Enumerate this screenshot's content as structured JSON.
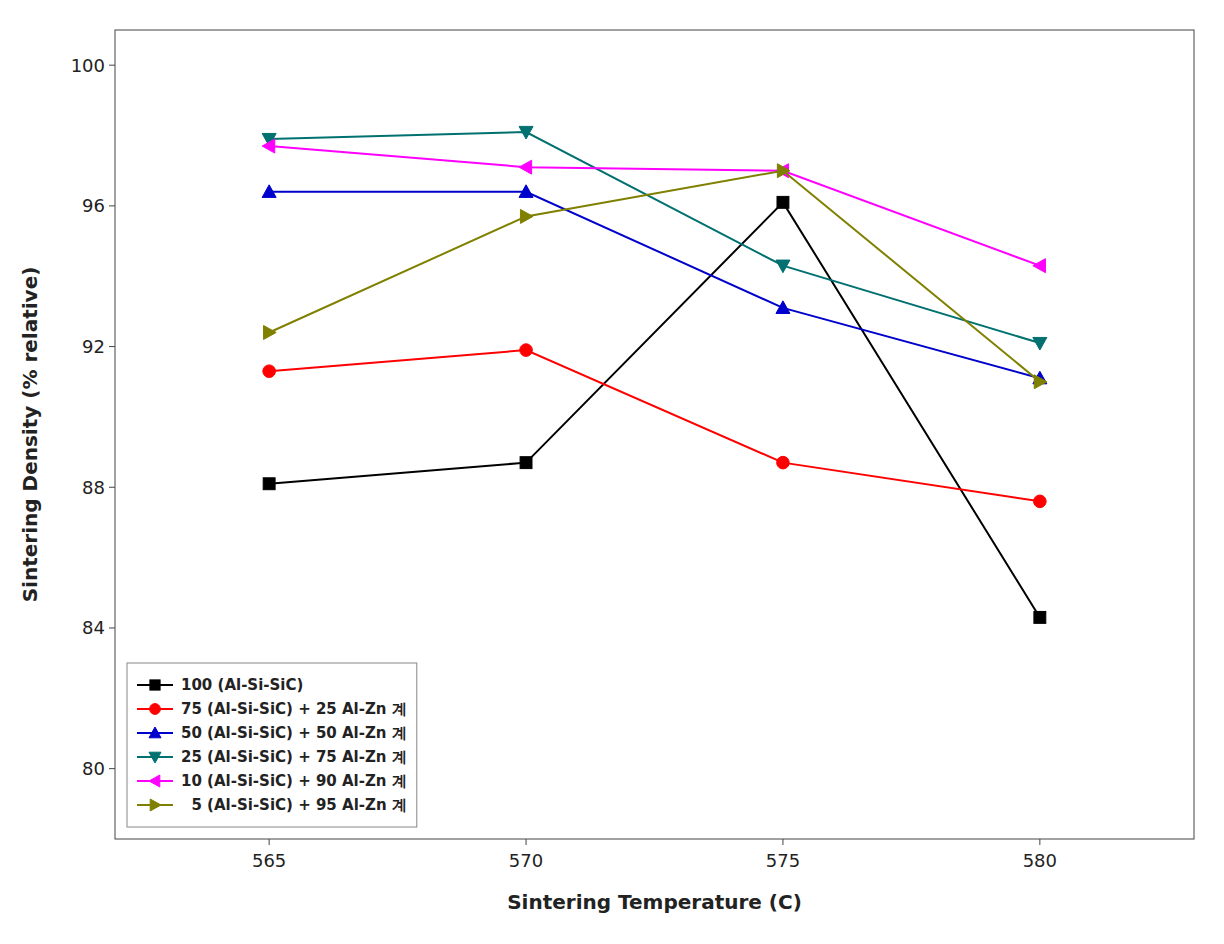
{
  "chart_data": {
    "type": "line",
    "x": [
      565,
      570,
      575,
      580
    ],
    "series": [
      {
        "name": "100 (Al-Si-SiC)",
        "color": "#000000",
        "marker": "square",
        "values": [
          88.1,
          88.7,
          96.1,
          84.3
        ]
      },
      {
        "name": "75 (Al-Si-SiC) + 25 Al-Zn 계",
        "color": "#ff0000",
        "marker": "circle",
        "values": [
          91.3,
          91.9,
          88.7,
          87.6
        ]
      },
      {
        "name": "50 (Al-Si-SiC) + 50 Al-Zn 계",
        "color": "#0000cc",
        "marker": "triangle-up",
        "values": [
          96.4,
          96.4,
          93.1,
          91.1
        ]
      },
      {
        "name": "25 (Al-Si-SiC) + 75 Al-Zn 계",
        "color": "#007070",
        "marker": "triangle-down",
        "values": [
          97.9,
          98.1,
          94.3,
          92.1
        ]
      },
      {
        "name": "10 (Al-Si-SiC) + 90 Al-Zn 계",
        "color": "#ff00ff",
        "marker": "triangle-left",
        "values": [
          97.7,
          97.1,
          97.0,
          94.3
        ]
      },
      {
        "name": "  5 (Al-Si-SiC) + 95 Al-Zn 계",
        "color": "#808000",
        "marker": "triangle-right",
        "values": [
          92.4,
          95.7,
          97.0,
          91.0
        ]
      }
    ],
    "xlabel": "Sintering Temperature (C)",
    "ylabel": "Sintering Density (% relative)",
    "xlim": [
      562,
      583
    ],
    "ylim": [
      78,
      101
    ],
    "xticks": [
      565,
      570,
      575,
      580
    ],
    "yticks": [
      80,
      84,
      88,
      92,
      96,
      100
    ],
    "legend": "lower left",
    "grid": false
  }
}
